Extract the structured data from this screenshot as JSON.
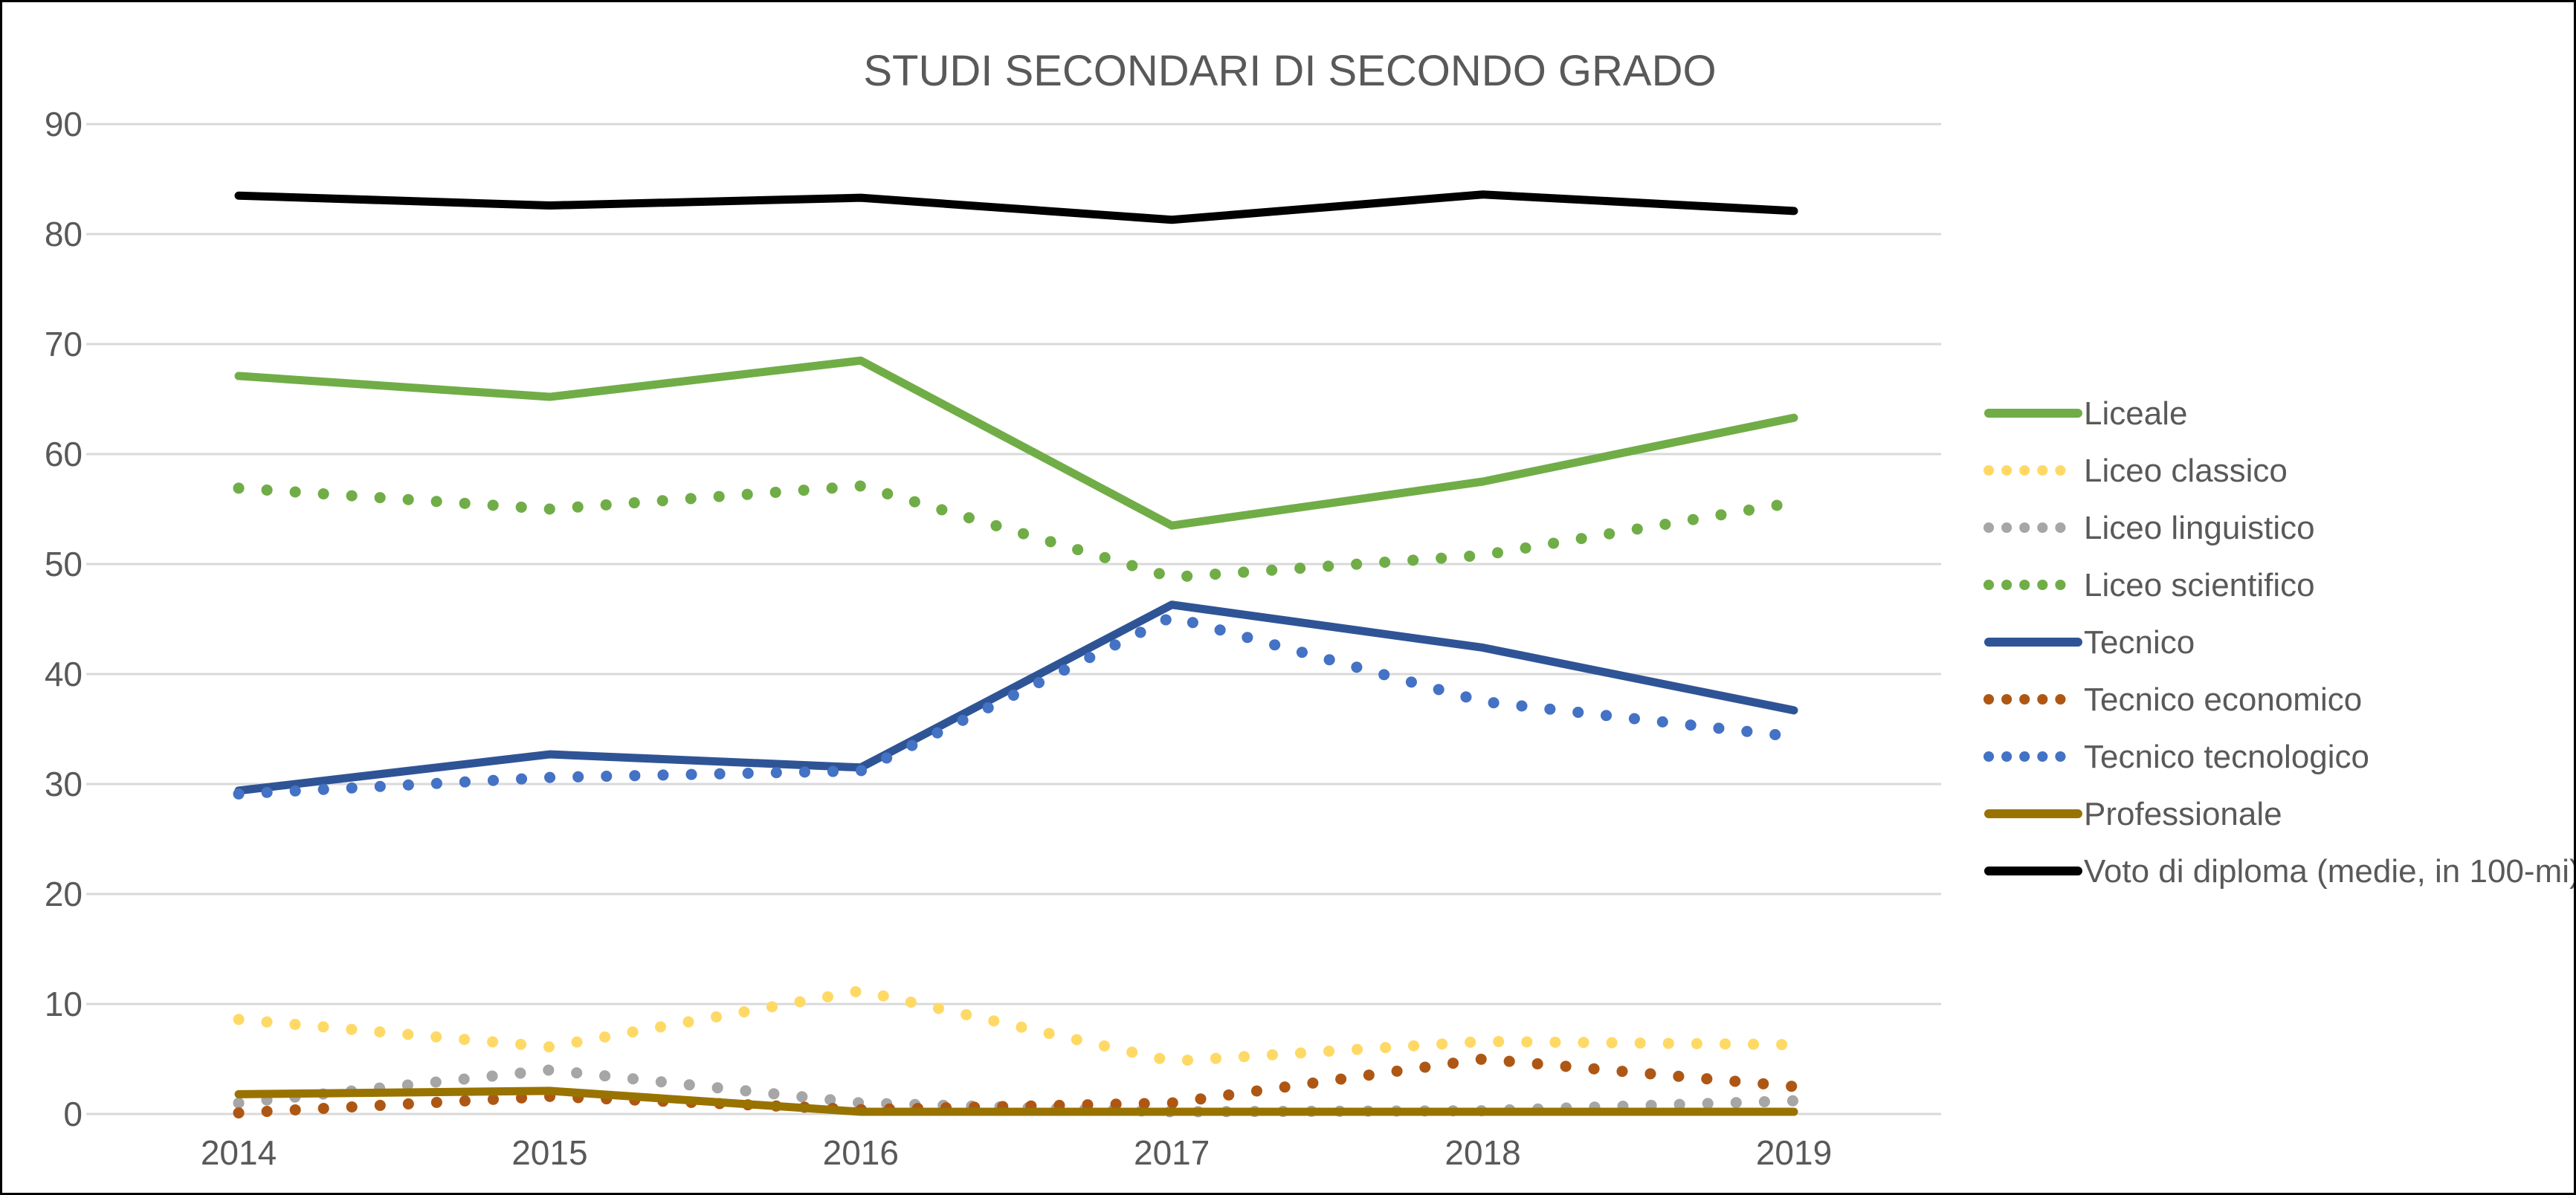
{
  "window": {
    "background": "#FFFFFF",
    "border_color": "#000000"
  },
  "chart_data": {
    "type": "line",
    "title": "STUDI SECONDARI DI SECONDO GRADO",
    "title_color": "#595959",
    "categories": [
      "2014",
      "2015",
      "2016",
      "2017",
      "2018",
      "2019"
    ],
    "xlabel": "",
    "ylabel": "",
    "ylim": [
      0,
      90
    ],
    "yticks": [
      0,
      10,
      20,
      30,
      40,
      50,
      60,
      70,
      80,
      90
    ],
    "grid": true,
    "gridline_color": "#D9D9D9",
    "axis_label_color": "#595959",
    "legend_position": "right",
    "legend_text_color": "#595959",
    "series": [
      {
        "name": "Liceale",
        "color": "#70AD47",
        "style": "solid",
        "values": [
          67.1,
          65.2,
          68.5,
          53.5,
          57.5,
          63.3
        ]
      },
      {
        "name": "Liceo classico",
        "color": "#FFD966",
        "style": "dotted",
        "values": [
          8.6,
          6.1,
          11.2,
          4.8,
          6.6,
          6.3
        ]
      },
      {
        "name": "Liceo linguistico",
        "color": "#A6A6A6",
        "style": "dotted",
        "values": [
          1.0,
          4.0,
          1.0,
          0.2,
          0.3,
          1.2
        ]
      },
      {
        "name": "Liceo scientifico",
        "color": "#70AD47",
        "style": "dotted",
        "values": [
          56.9,
          55.0,
          57.1,
          48.8,
          50.8,
          55.6
        ]
      },
      {
        "name": "Tecnico",
        "color": "#2F5496",
        "style": "solid",
        "values": [
          29.4,
          32.7,
          31.5,
          46.3,
          42.4,
          36.7
        ]
      },
      {
        "name": "Tecnico economico",
        "color": "#AE5714",
        "style": "dotted",
        "values": [
          0.1,
          1.6,
          0.4,
          1.0,
          5.0,
          2.5
        ]
      },
      {
        "name": "Tecnico tecnologico",
        "color": "#4472C4",
        "style": "dotted",
        "values": [
          29.1,
          30.6,
          31.2,
          45.2,
          37.5,
          34.3
        ]
      },
      {
        "name": "Professionale",
        "color": "#997300",
        "style": "solid",
        "values": [
          1.8,
          2.1,
          0.2,
          0.2,
          0.2,
          0.2
        ]
      },
      {
        "name": "Voto di diploma (medie, in 100-mi)",
        "color": "#000000",
        "style": "solid",
        "values": [
          83.5,
          82.6,
          83.3,
          81.3,
          83.6,
          82.1
        ]
      }
    ]
  }
}
